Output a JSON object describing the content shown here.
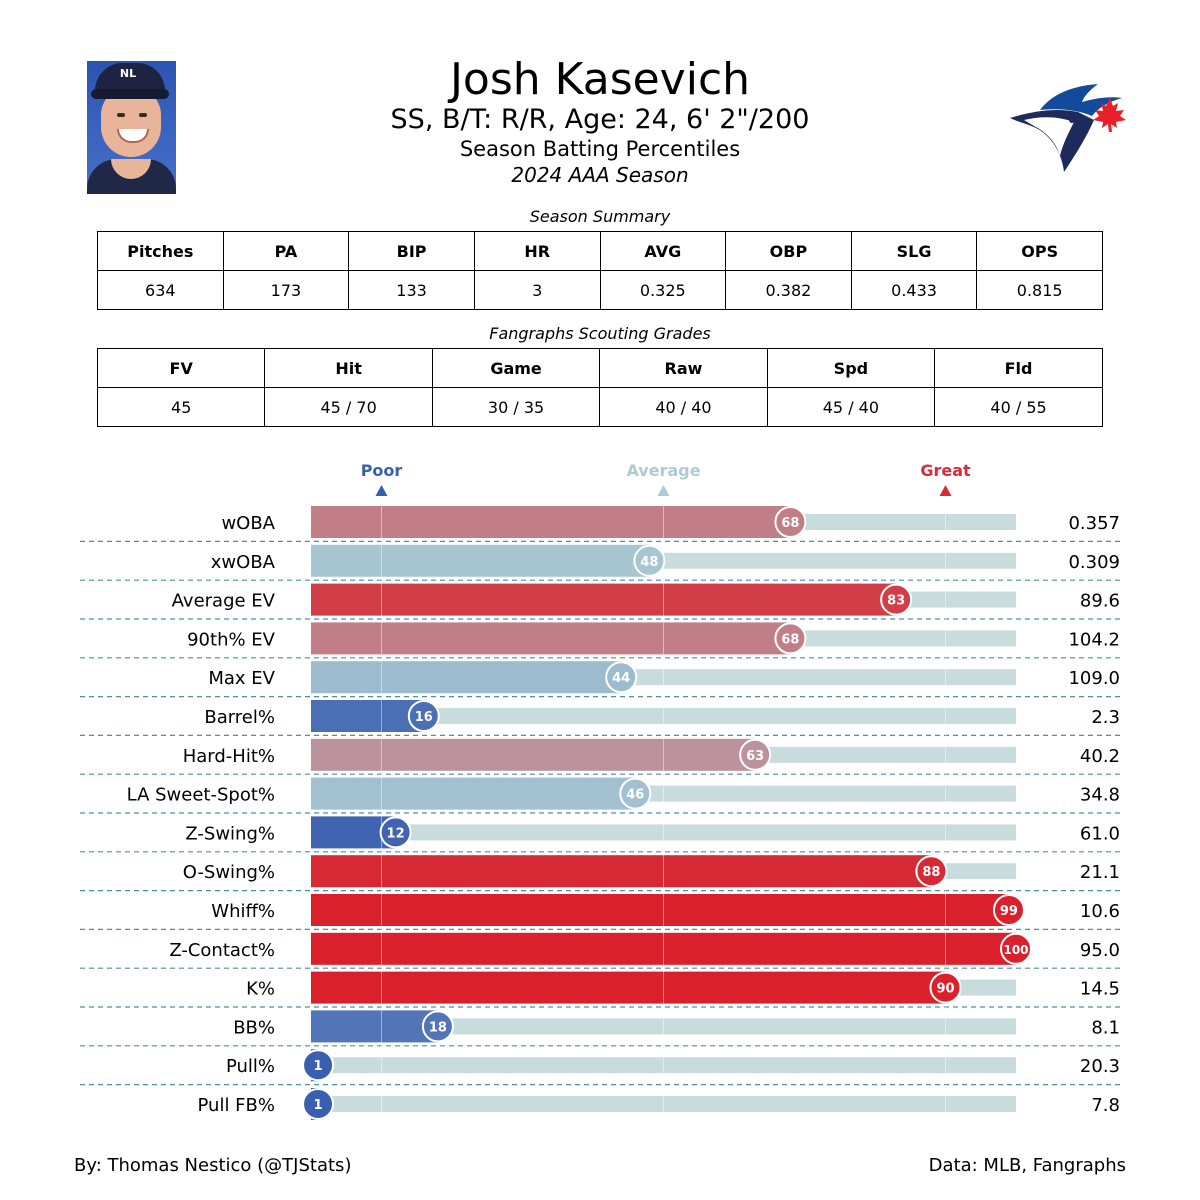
{
  "header": {
    "name": "Josh Kasevich",
    "bio": "SS, B/T: R/R, Age: 24, 6' 2\"/200",
    "subtitle": "Season Batting Percentiles",
    "season": "2024 AAA Season",
    "cap_mark": "NL"
  },
  "summary": {
    "caption": "Season Summary",
    "headers": [
      "Pitches",
      "PA",
      "BIP",
      "HR",
      "AVG",
      "OBP",
      "SLG",
      "OPS"
    ],
    "values": [
      "634",
      "173",
      "133",
      "3",
      "0.325",
      "0.382",
      "0.433",
      "0.815"
    ]
  },
  "grades": {
    "caption": "Fangraphs Scouting Grades",
    "headers": [
      "FV",
      "Hit",
      "Game",
      "Raw",
      "Spd",
      "Fld"
    ],
    "values": [
      "45",
      "45 / 70",
      "30 / 35",
      "40 / 40",
      "45 / 40",
      "40 / 55"
    ]
  },
  "chart_data": {
    "type": "bar",
    "orientation": "horizontal",
    "xlim": [
      0,
      100
    ],
    "markers": [
      {
        "label": "Poor",
        "value": 10,
        "color": "#3a5fb0"
      },
      {
        "label": "Average",
        "value": 50,
        "color": "#aecbd3"
      },
      {
        "label": "Great",
        "value": 90,
        "color": "#d62d39"
      }
    ],
    "categories": [
      "wOBA",
      "xwOBA",
      "Average EV",
      "90th% EV",
      "Max EV",
      "Barrel%",
      "Hard-Hit%",
      "LA Sweet-Spot%",
      "Z-Swing%",
      "O-Swing%",
      "Whiff%",
      "Z-Contact%",
      "K%",
      "BB%",
      "Pull%",
      "Pull FB%"
    ],
    "percentiles": [
      68,
      48,
      83,
      68,
      44,
      16,
      63,
      46,
      12,
      88,
      99,
      100,
      90,
      18,
      1,
      1
    ],
    "stat_values": [
      "0.357",
      "0.309",
      "89.6",
      "104.2",
      "109.0",
      "2.3",
      "40.2",
      "34.8",
      "61.0",
      "21.1",
      "10.6",
      "95.0",
      "14.5",
      "8.1",
      "20.3",
      "7.8"
    ],
    "track_color": "#c8dcdd"
  },
  "footer": {
    "left": "By: Thomas Nestico (@TJStats)",
    "right": "Data: MLB, Fangraphs"
  }
}
